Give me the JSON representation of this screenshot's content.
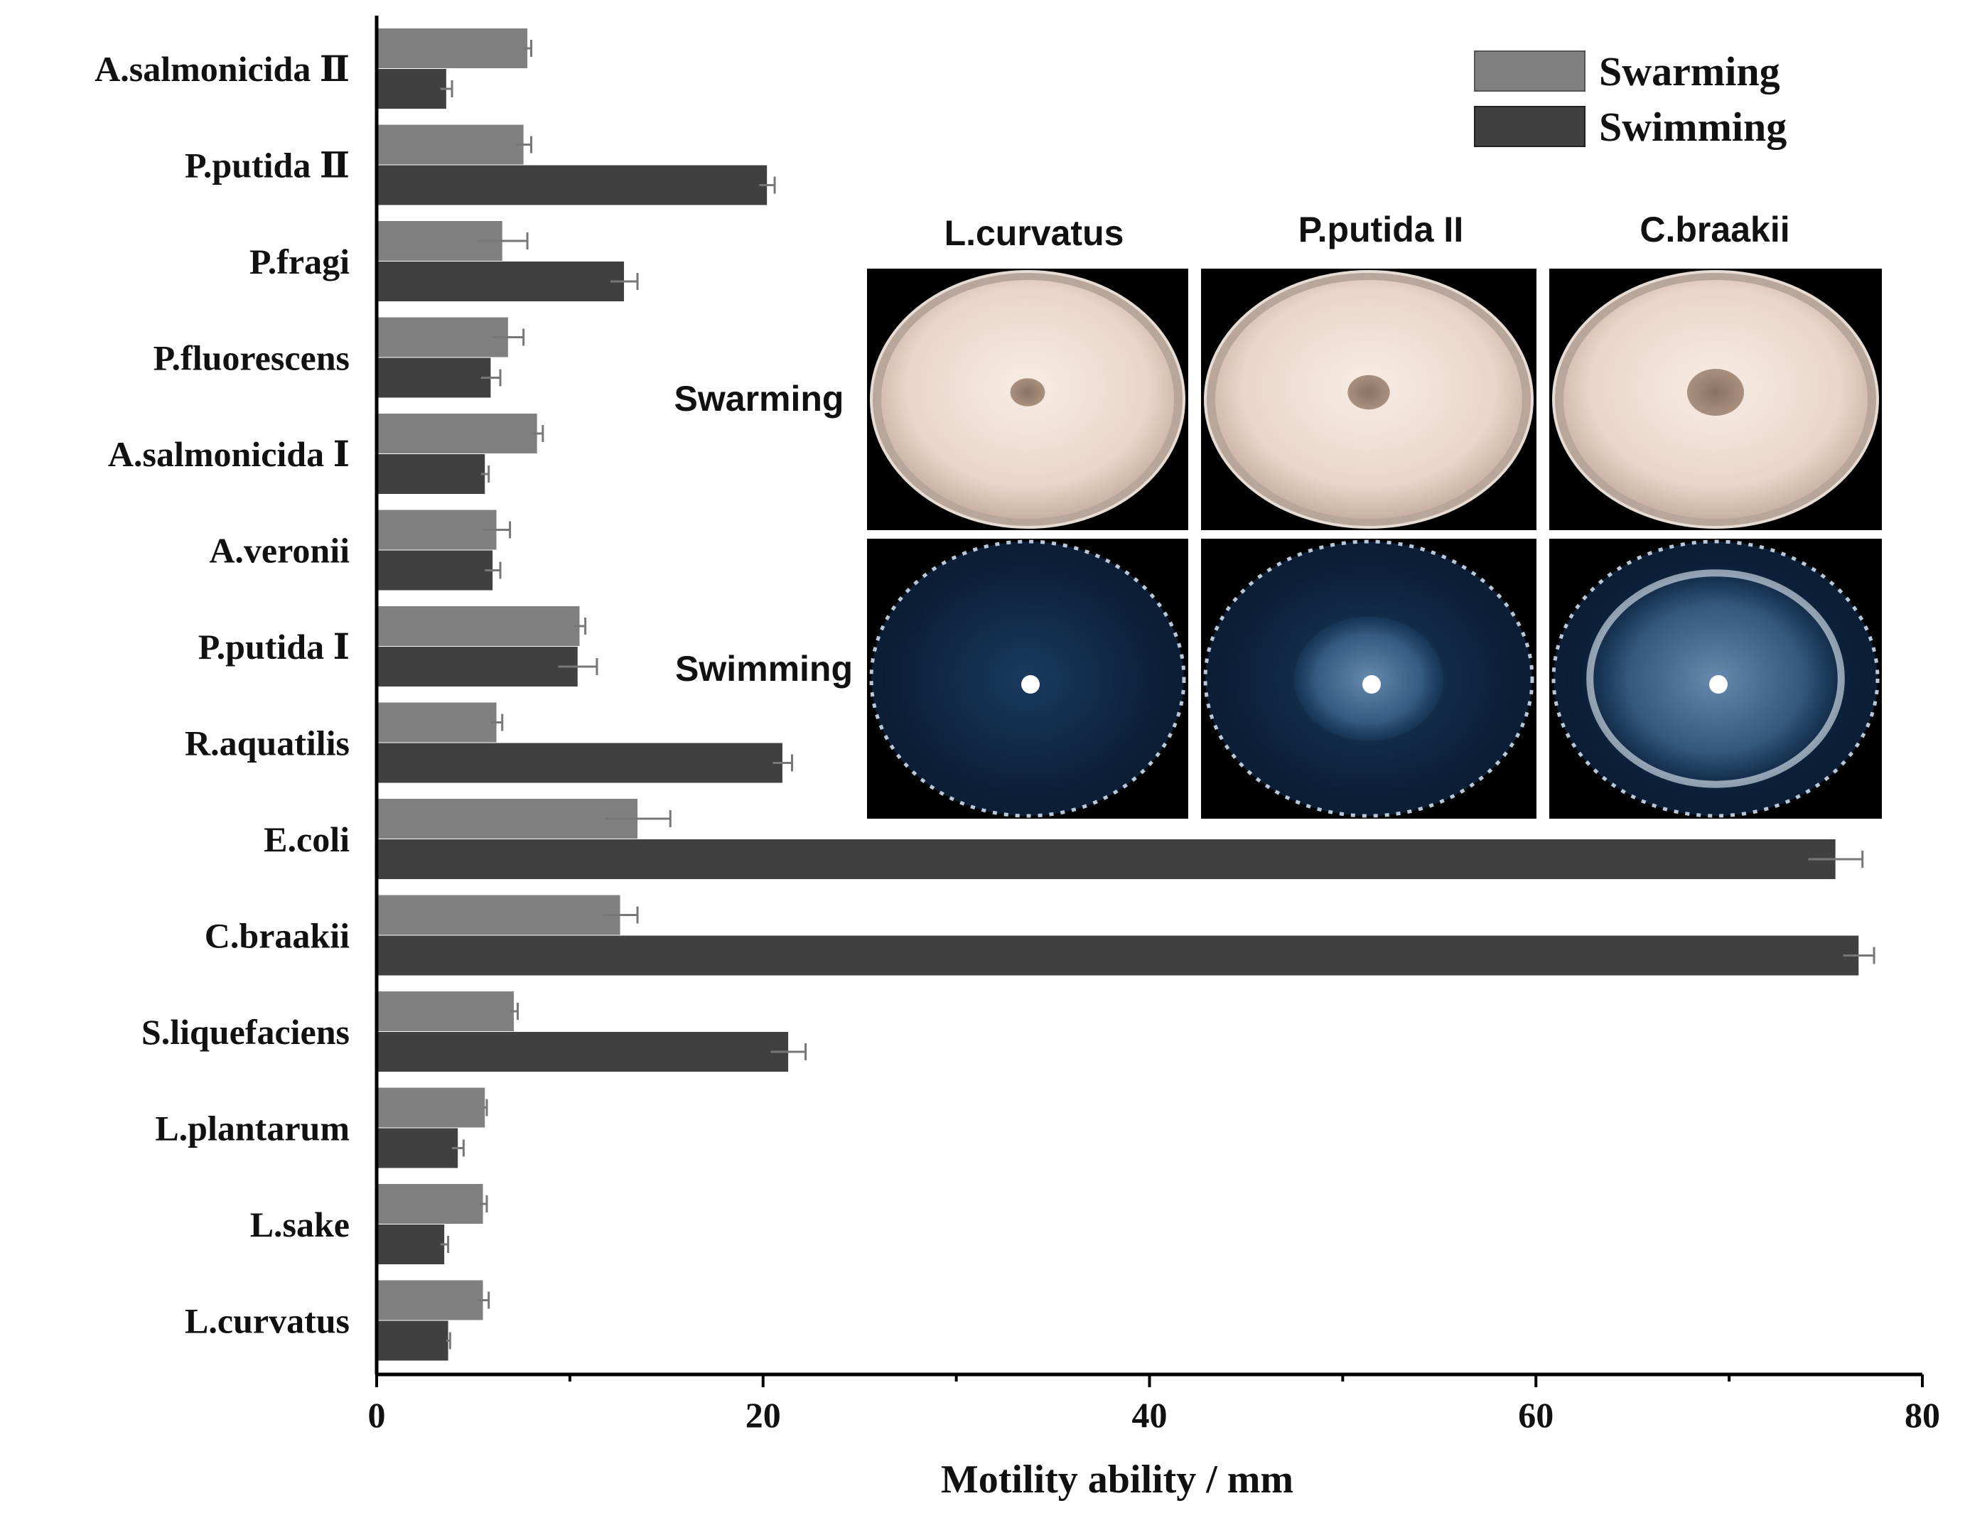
{
  "chart_data": {
    "type": "bar",
    "orientation": "horizontal",
    "categories": [
      "A.salmonicida Ⅱ",
      "P.putida Ⅱ",
      "P.fragi",
      "P.fluorescens",
      "A.salmonicida Ⅰ",
      "A.veronii",
      "P.putida Ⅰ",
      "R.aquatilis",
      "E.coli",
      "C.braakii",
      "S.liquefaciens",
      "L.plantarum",
      "L.sake",
      "L.curvatus"
    ],
    "series": [
      {
        "name": "Swarming",
        "color": "#808080",
        "values": [
          7.8,
          7.6,
          6.5,
          6.8,
          8.3,
          6.2,
          10.5,
          6.2,
          13.5,
          12.6,
          7.1,
          5.6,
          5.5,
          5.5
        ],
        "errors": [
          0.2,
          0.4,
          1.3,
          0.8,
          0.3,
          0.7,
          0.3,
          0.3,
          1.7,
          0.9,
          0.2,
          0.1,
          0.2,
          0.3
        ]
      },
      {
        "name": "Swimming",
        "color": "#404040",
        "values": [
          3.6,
          20.2,
          12.8,
          5.9,
          5.6,
          6.0,
          10.4,
          21.0,
          75.5,
          76.7,
          21.3,
          4.2,
          3.5,
          3.7
        ],
        "errors": [
          0.3,
          0.4,
          0.7,
          0.5,
          0.2,
          0.4,
          1.0,
          0.5,
          1.4,
          0.8,
          0.9,
          0.3,
          0.2,
          0.1
        ]
      }
    ],
    "xlim": [
      0,
      80
    ],
    "xticks": [
      0,
      20,
      40,
      60,
      80
    ],
    "xlabel": "Motility ability / mm",
    "ylabel": "",
    "legend_position": "top-right"
  },
  "inset": {
    "columns": [
      "L.curvatus",
      "P.putida II",
      "C.braakii"
    ],
    "rows": [
      "Swarming",
      "Swimming"
    ],
    "swarm_colony_scale": [
      0.4,
      0.6,
      1.0
    ],
    "swim_halo_scale": [
      0.0,
      0.5,
      0.85
    ]
  }
}
